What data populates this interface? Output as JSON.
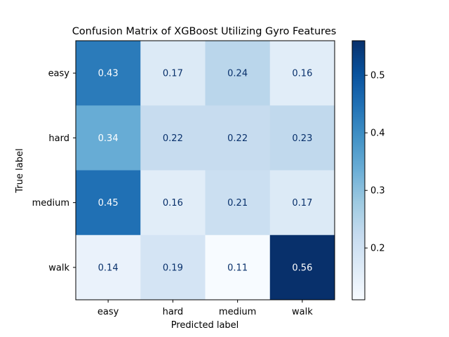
{
  "chart_data": {
    "type": "heatmap",
    "title": "Confusion Matrix of XGBoost Utilizing Gyro Features",
    "xlabel": "Predicted label",
    "ylabel": "True label",
    "x_categories": [
      "easy",
      "hard",
      "medium",
      "walk"
    ],
    "y_categories": [
      "easy",
      "hard",
      "medium",
      "walk"
    ],
    "values": [
      [
        0.43,
        0.17,
        0.24,
        0.16
      ],
      [
        0.34,
        0.22,
        0.22,
        0.23
      ],
      [
        0.45,
        0.16,
        0.21,
        0.17
      ],
      [
        0.14,
        0.19,
        0.11,
        0.56
      ]
    ],
    "colormap": "Blues",
    "colorbar": {
      "range": [
        0.11,
        0.56
      ],
      "ticks": [
        0.2,
        0.3,
        0.4,
        0.5
      ],
      "tick_labels": [
        "0.2",
        "0.3",
        "0.4",
        "0.5"
      ]
    },
    "grid": false
  }
}
